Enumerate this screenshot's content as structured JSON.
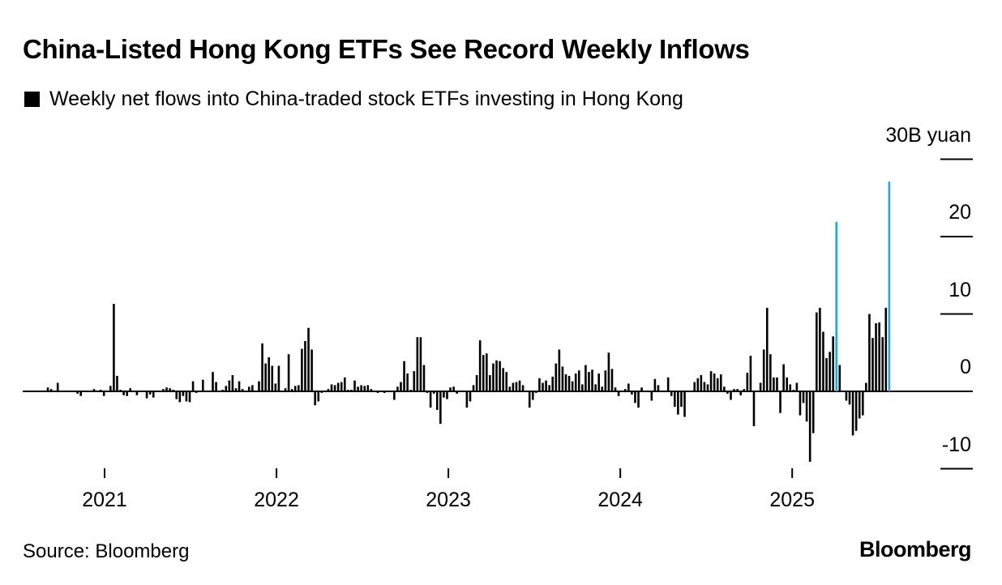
{
  "chart_data": {
    "type": "bar",
    "title": "China-Listed Hong Kong ETFs See Record Weekly Inflows",
    "legend": "Weekly net flows into China-traded stock ETFs investing in Hong Kong",
    "ylabel": "B yuan",
    "y_unit_label": "30B yuan",
    "ylim": [
      -10,
      30
    ],
    "yticks": [
      {
        "value": 30,
        "label": "30B yuan"
      },
      {
        "value": 20,
        "label": "20"
      },
      {
        "value": 10,
        "label": "10"
      },
      {
        "value": 0,
        "label": "0"
      },
      {
        "value": -10,
        "label": "-10"
      }
    ],
    "x_unit": "week index",
    "xlim": [
      -7.6,
      280
    ],
    "xticks": [
      {
        "value": 17.2,
        "label": "2021"
      },
      {
        "value": 69.3,
        "label": "2022"
      },
      {
        "value": 121.4,
        "label": "2023"
      },
      {
        "value": 173.5,
        "label": "2024"
      },
      {
        "value": 225.6,
        "label": "2025"
      }
    ],
    "legend_position": "top-left",
    "grid": false,
    "highlight_indices": [
      239,
      255
    ],
    "colors": {
      "bar": "#000000",
      "highlight": "#1fa8f0",
      "axis": "#000000"
    },
    "values": [
      0.5,
      0.3,
      0.1,
      1.1,
      0,
      0,
      0,
      0,
      0,
      -0.3,
      -0.6,
      0,
      -0.1,
      0,
      0.3,
      0,
      0.2,
      -0.6,
      0,
      0.7,
      11.3,
      2.0,
      0.2,
      -0.5,
      -0.6,
      0.4,
      0,
      -0.5,
      0,
      0,
      -0.9,
      -0.4,
      -0.8,
      0,
      0,
      0.3,
      0.5,
      0.4,
      0.2,
      -1.0,
      -1.4,
      -0.6,
      -1.3,
      -1.4,
      1.3,
      -0.2,
      0,
      1.5,
      0,
      0,
      2.5,
      1.2,
      0,
      0.2,
      0.7,
      1.4,
      2.1,
      0.4,
      1.3,
      0.3,
      0,
      0.6,
      0.8,
      0,
      1.3,
      6.2,
      3.6,
      4.4,
      3.3,
      1.0,
      3.3,
      0,
      0.4,
      4.8,
      0.3,
      0.7,
      0.8,
      5.5,
      6.5,
      8.2,
      5.4,
      -1.8,
      -1.3,
      -0.2,
      0,
      0.3,
      0.9,
      0.8,
      1.1,
      1.2,
      1.8,
      0.2,
      0.2,
      1.4,
      0.6,
      0.8,
      0.7,
      0.8,
      0.3,
      -0.1,
      -0.2,
      -0.1,
      -0.2,
      0,
      0.1,
      -1.1,
      0.6,
      1.2,
      3.9,
      2.3,
      0.2,
      2.6,
      7.0,
      7.0,
      3.4,
      -0.2,
      -2.1,
      -0.3,
      -2.4,
      -4.2,
      -0.8,
      -1.0,
      0.5,
      0.6,
      -0.3,
      0.1,
      0,
      -2.1,
      -1.3,
      0.8,
      2.1,
      6.6,
      4.7,
      4.9,
      2.1,
      3.6,
      4.0,
      3.9,
      3.0,
      2.5,
      0.6,
      1.1,
      1.2,
      1.4,
      0.8,
      -0.1,
      -2.1,
      -1.1,
      -0.2,
      1.7,
      1.1,
      1.4,
      0.8,
      1.9,
      3.6,
      5.4,
      3.2,
      2.2,
      2.0,
      1.3,
      2.3,
      2.7,
      0.9,
      3.4,
      2.5,
      2.8,
      0.9,
      2.3,
      0.6,
      2.7,
      5.0,
      2.9,
      0.5,
      -0.6,
      0.1,
      0.3,
      1.0,
      -0.4,
      -1.5,
      -2.1,
      0.5,
      0,
      -0.1,
      -1.2,
      1.6,
      0.8,
      0.1,
      0,
      1.8,
      -0.6,
      -2.0,
      -3.0,
      -2.0,
      -3.3,
      0,
      0,
      1.2,
      1.7,
      2.1,
      1.2,
      0.9,
      2.6,
      2.3,
      1.7,
      2.2,
      0.6,
      -0.3,
      -1.1,
      0.3,
      0.3,
      -0.5,
      0.3,
      2.4,
      4.6,
      -4.5,
      0,
      1.1,
      5.4,
      10.8,
      4.8,
      1.8,
      1.8,
      -2.8,
      3.5,
      1.8,
      0.9,
      0.2,
      1.1,
      -3.1,
      -1.5,
      -3.9,
      -9.1,
      -5.4,
      10.2,
      10.8,
      7.7,
      4.3,
      5.1,
      7.1,
      21.9,
      3.4,
      0,
      -1.2,
      -1.7,
      -5.7,
      -5.1,
      -3.5,
      -3.1,
      1.1,
      10.0,
      6.9,
      8.8,
      8.9,
      7.0,
      10.8,
      27.1
    ]
  },
  "footer": {
    "source": "Source: Bloomberg",
    "logo": "Bloomberg"
  }
}
